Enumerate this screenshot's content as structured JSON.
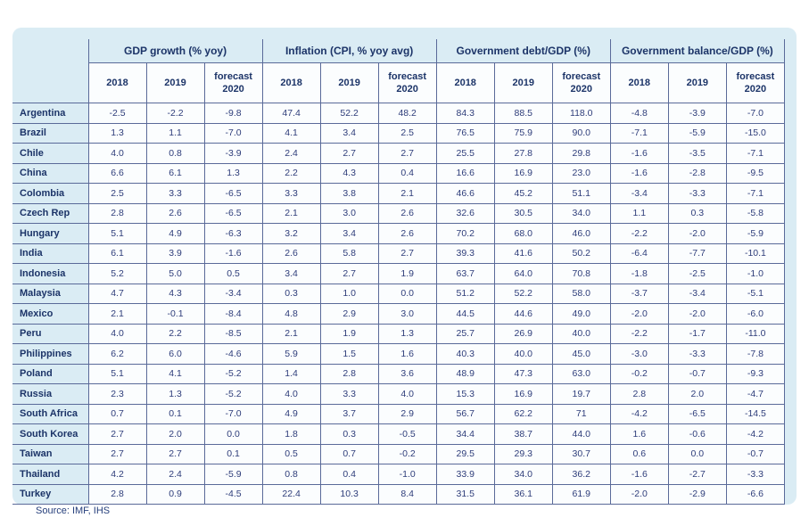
{
  "source_note": "Source: IMF, IHS",
  "colors": {
    "panel_bg": "#daecf4",
    "cell_bg": "#fbfdfe",
    "border": "#5a6a99",
    "header_text": "#1c3468",
    "value_text": "#2e3d7a"
  },
  "chart_data": {
    "type": "table",
    "column_groups": [
      "GDP growth (% yoy)",
      "Inflation (CPI, % yoy avg)",
      "Government debt/GDP (%)",
      "Government balance/GDP (%)"
    ],
    "sub_columns": [
      "2018",
      "2019",
      "forecast 2020"
    ],
    "rows": [
      {
        "country": "Argentina",
        "values": [
          "-2.5",
          "-2.2",
          "-9.8",
          "47.4",
          "52.2",
          "48.2",
          "84.3",
          "88.5",
          "118.0",
          "-4.8",
          "-3.9",
          "-7.0"
        ]
      },
      {
        "country": "Brazil",
        "values": [
          "1.3",
          "1.1",
          "-7.0",
          "4.1",
          "3.4",
          "2.5",
          "76.5",
          "75.9",
          "90.0",
          "-7.1",
          "-5.9",
          "-15.0"
        ]
      },
      {
        "country": "Chile",
        "values": [
          "4.0",
          "0.8",
          "-3.9",
          "2.4",
          "2.7",
          "2.7",
          "25.5",
          "27.8",
          "29.8",
          "-1.6",
          "-3.5",
          "-7.1"
        ]
      },
      {
        "country": "China",
        "values": [
          "6.6",
          "6.1",
          "1.3",
          "2.2",
          "4.3",
          "0.4",
          "16.6",
          "16.9",
          "23.0",
          "-1.6",
          "-2.8",
          "-9.5"
        ]
      },
      {
        "country": "Colombia",
        "values": [
          "2.5",
          "3.3",
          "-6.5",
          "3.3",
          "3.8",
          "2.1",
          "46.6",
          "45.2",
          "51.1",
          "-3.4",
          "-3.3",
          "-7.1"
        ]
      },
      {
        "country": "Czech Rep",
        "values": [
          "2.8",
          "2.6",
          "-6.5",
          "2.1",
          "3.0",
          "2.6",
          "32.6",
          "30.5",
          "34.0",
          "1.1",
          "0.3",
          "-5.8"
        ]
      },
      {
        "country": "Hungary",
        "values": [
          "5.1",
          "4.9",
          "-6.3",
          "3.2",
          "3.4",
          "2.6",
          "70.2",
          "68.0",
          "46.0",
          "-2.2",
          "-2.0",
          "-5.9"
        ]
      },
      {
        "country": "India",
        "values": [
          "6.1",
          "3.9",
          "-1.6",
          "2.6",
          "5.8",
          "2.7",
          "39.3",
          "41.6",
          "50.2",
          "-6.4",
          "-7.7",
          "-10.1"
        ]
      },
      {
        "country": "Indonesia",
        "values": [
          "5.2",
          "5.0",
          "0.5",
          "3.4",
          "2.7",
          "1.9",
          "63.7",
          "64.0",
          "70.8",
          "-1.8",
          "-2.5",
          "-1.0"
        ]
      },
      {
        "country": "Malaysia",
        "values": [
          "4.7",
          "4.3",
          "-3.4",
          "0.3",
          "1.0",
          "0.0",
          "51.2",
          "52.2",
          "58.0",
          "-3.7",
          "-3.4",
          "-5.1"
        ]
      },
      {
        "country": "Mexico",
        "values": [
          "2.1",
          "-0.1",
          "-8.4",
          "4.8",
          "2.9",
          "3.0",
          "44.5",
          "44.6",
          "49.0",
          "-2.0",
          "-2.0",
          "-6.0"
        ]
      },
      {
        "country": "Peru",
        "values": [
          "4.0",
          "2.2",
          "-8.5",
          "2.1",
          "1.9",
          "1.3",
          "25.7",
          "26.9",
          "40.0",
          "-2.2",
          "-1.7",
          "-11.0"
        ]
      },
      {
        "country": "Philippines",
        "values": [
          "6.2",
          "6.0",
          "-4.6",
          "5.9",
          "1.5",
          "1.6",
          "40.3",
          "40.0",
          "45.0",
          "-3.0",
          "-3.3",
          "-7.8"
        ]
      },
      {
        "country": "Poland",
        "values": [
          "5.1",
          "4.1",
          "-5.2",
          "1.4",
          "2.8",
          "3.6",
          "48.9",
          "47.3",
          "63.0",
          "-0.2",
          "-0.7",
          "-9.3"
        ]
      },
      {
        "country": "Russia",
        "values": [
          "2.3",
          "1.3",
          "-5.2",
          "4.0",
          "3.3",
          "4.0",
          "15.3",
          "16.9",
          "19.7",
          "2.8",
          "2.0",
          "-4.7"
        ]
      },
      {
        "country": "South Africa",
        "values": [
          "0.7",
          "0.1",
          "-7.0",
          "4.9",
          "3.7",
          "2.9",
          "56.7",
          "62.2",
          "71",
          "-4.2",
          "-6.5",
          "-14.5"
        ]
      },
      {
        "country": "South Korea",
        "values": [
          "2.7",
          "2.0",
          "0.0",
          "1.8",
          "0.3",
          "-0.5",
          "34.4",
          "38.7",
          "44.0",
          "1.6",
          "-0.6",
          "-4.2"
        ]
      },
      {
        "country": "Taiwan",
        "values": [
          "2.7",
          "2.7",
          "0.1",
          "0.5",
          "0.7",
          "-0.2",
          "29.5",
          "29.3",
          "30.7",
          "0.6",
          "0.0",
          "-0.7"
        ]
      },
      {
        "country": "Thailand",
        "values": [
          "4.2",
          "2.4",
          "-5.9",
          "0.8",
          "0.4",
          "-1.0",
          "33.9",
          "34.0",
          "36.2",
          "-1.6",
          "-2.7",
          "-3.3"
        ]
      },
      {
        "country": "Turkey",
        "values": [
          "2.8",
          "0.9",
          "-4.5",
          "22.4",
          "10.3",
          "8.4",
          "31.5",
          "36.1",
          "61.9",
          "-2.0",
          "-2.9",
          "-6.6"
        ]
      }
    ]
  }
}
